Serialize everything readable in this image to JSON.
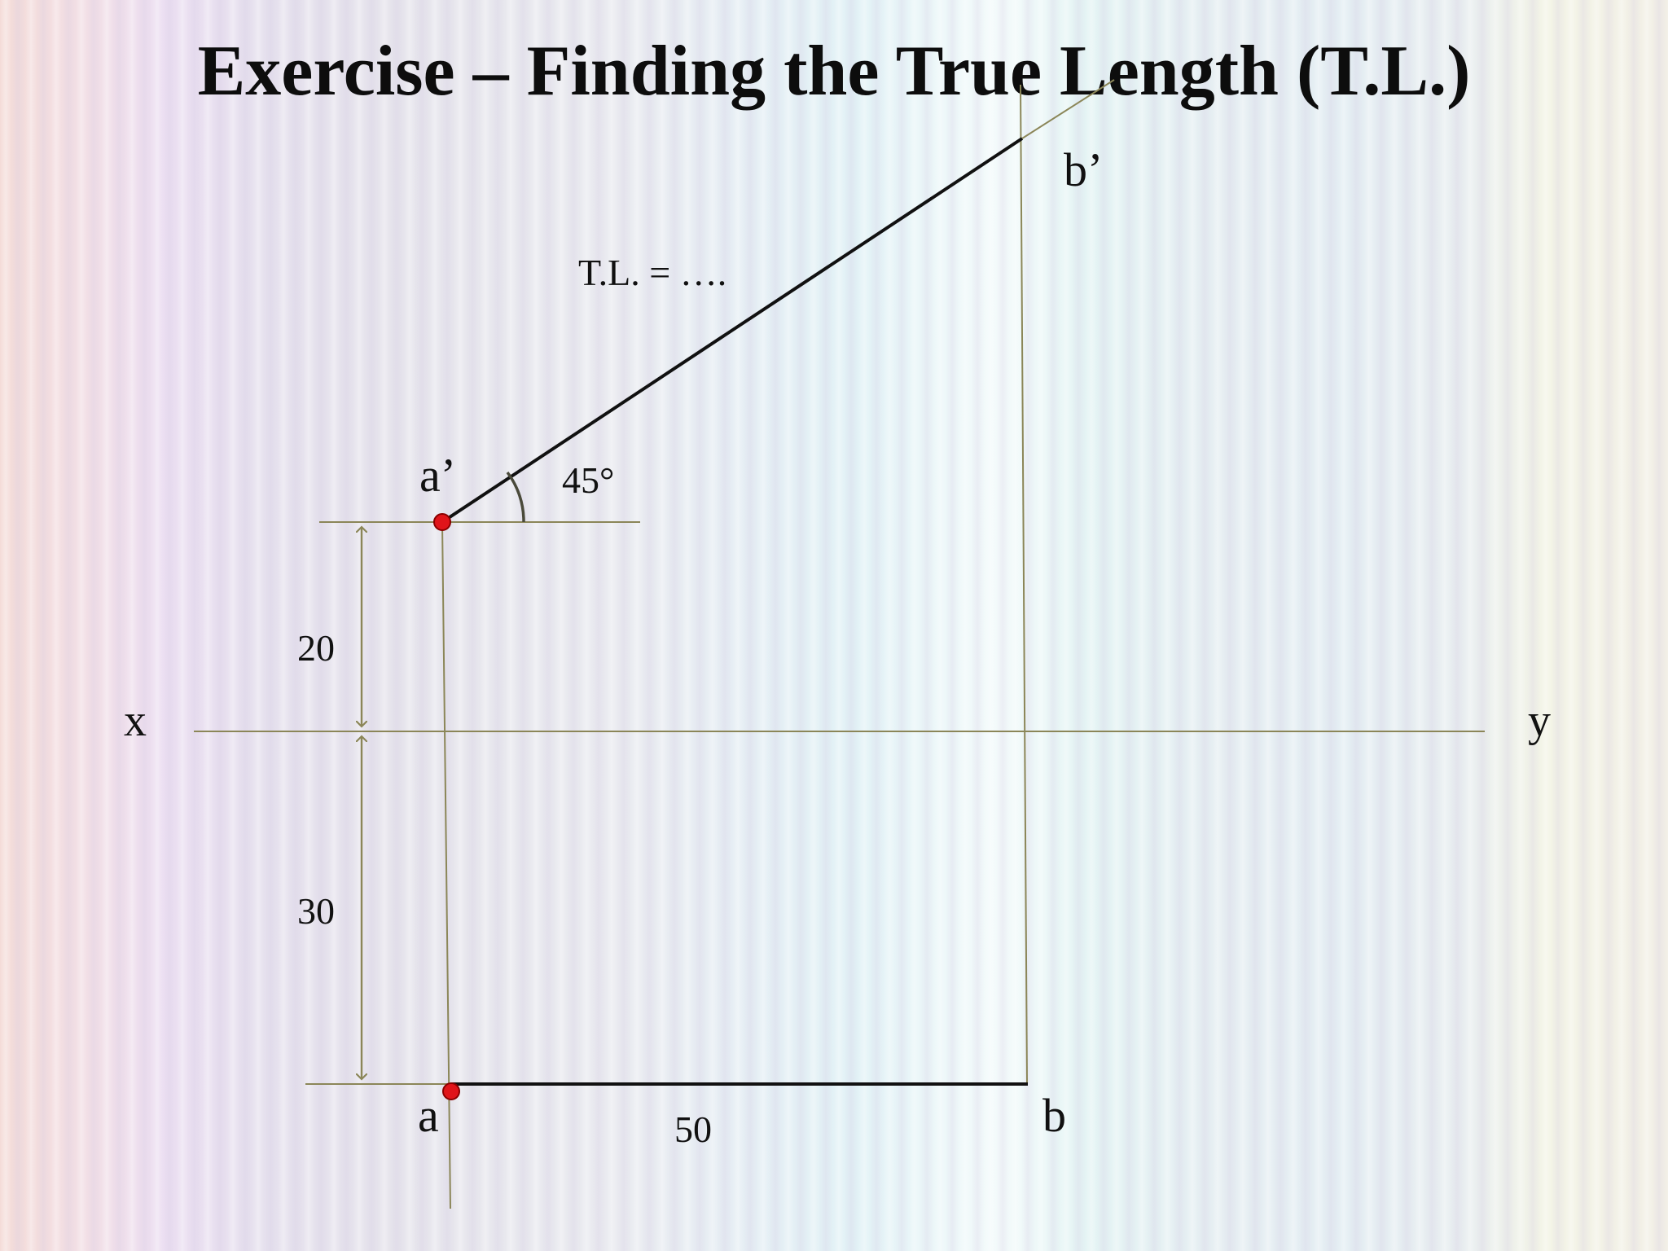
{
  "title": "Exercise – Finding the True Length (T.L.)",
  "diagram": {
    "points": {
      "a_prime": "a’",
      "b_prime": "b’",
      "a": "a",
      "b": "b"
    },
    "axis": {
      "x_label": "x",
      "y_label": "y"
    },
    "annotations": {
      "true_length": "T.L. = ….",
      "angle": "45°",
      "dim_above_xy": "20",
      "dim_below_xy": "30",
      "dim_plan_length": "50"
    },
    "colors": {
      "construction_line": "#8b8658",
      "object_line": "#111111",
      "point_marker": "#e0141a",
      "point_marker_edge": "#8a0000",
      "angle_arc": "#4a4a3a"
    }
  }
}
